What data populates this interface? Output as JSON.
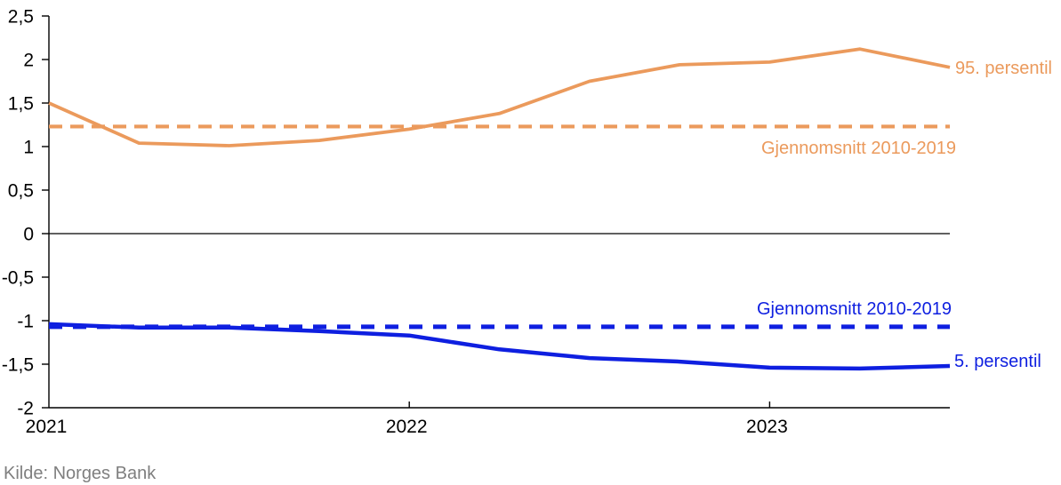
{
  "source": "Kilde: Norges Bank",
  "colors": {
    "orange": "#EB9A5C",
    "blue": "#0E1FE0",
    "axis": "#000000",
    "source_text": "#7F7F7F"
  },
  "chart_data": {
    "type": "line",
    "title": "",
    "xlabel": "",
    "ylabel": "",
    "xlim": [
      2021.0,
      2023.5
    ],
    "ylim": [
      -2,
      2.5
    ],
    "grid": false,
    "zero_line": true,
    "legend_position": "inline-annotations",
    "x": [
      2021.0,
      2021.25,
      2021.5,
      2021.75,
      2022.0,
      2022.25,
      2022.5,
      2022.75,
      2023.0,
      2023.25,
      2023.5
    ],
    "y_ticks": [
      {
        "v": 2.5,
        "label": "2,5"
      },
      {
        "v": 2,
        "label": "2"
      },
      {
        "v": 1.5,
        "label": "1,5"
      },
      {
        "v": 1,
        "label": "1"
      },
      {
        "v": 0.5,
        "label": "0,5"
      },
      {
        "v": 0,
        "label": "0"
      },
      {
        "v": -0.5,
        "label": "-0,5"
      },
      {
        "v": -1,
        "label": "-1"
      },
      {
        "v": -1.5,
        "label": "-1,5"
      },
      {
        "v": -2,
        "label": "-2"
      }
    ],
    "x_ticks": [
      {
        "x": 2021,
        "label": "2021",
        "tick": false
      },
      {
        "x": 2022,
        "label": "2022",
        "tick": true
      },
      {
        "x": 2023,
        "label": "2023",
        "tick": true
      }
    ],
    "series": [
      {
        "name": "95. persentil",
        "type": "line",
        "style": "solid",
        "color": "#EB9A5C",
        "width": 3.8,
        "values": [
          1.5,
          1.04,
          1.01,
          1.07,
          1.2,
          1.38,
          1.75,
          1.94,
          1.97,
          2.12,
          1.91
        ]
      },
      {
        "name": "Gjennomsnitt 2010-2019",
        "type": "hline",
        "style": "dashed",
        "color": "#EB9A5C",
        "width": 4.2,
        "value": 1.23
      },
      {
        "name": "Gjennomsnitt 2010-2019",
        "type": "hline",
        "style": "dashed",
        "color": "#0E1FE0",
        "width": 5,
        "value": -1.07
      },
      {
        "name": "5. persentil",
        "type": "line",
        "style": "solid",
        "color": "#0E1FE0",
        "width": 4.5,
        "values": [
          -1.04,
          -1.08,
          -1.08,
          -1.12,
          -1.17,
          -1.33,
          -1.43,
          -1.47,
          -1.54,
          -1.55,
          -1.52
        ]
      }
    ]
  }
}
